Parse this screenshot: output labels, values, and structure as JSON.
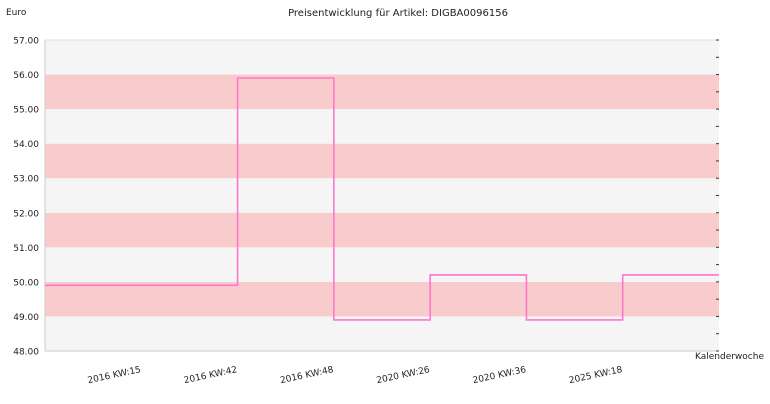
{
  "chart_data": {
    "type": "line",
    "step": true,
    "title": "Preisentwicklung für Artikel: DIGBA0096156",
    "ylabel": "Euro",
    "xlabel": "Kalenderwoche",
    "ylim": [
      48.0,
      57.0
    ],
    "yticks": [
      "48.00",
      "49.00",
      "50.00",
      "51.00",
      "52.00",
      "53.00",
      "54.00",
      "55.00",
      "56.00",
      "57.00"
    ],
    "categories": [
      "2016 KW:15",
      "2016 KW:42",
      "2016 KW:48",
      "2020 KW:26",
      "2020 KW:36",
      "2025 KW:18"
    ],
    "series": [
      {
        "values": [
          49.9,
          55.9,
          48.9,
          50.2,
          48.9,
          50.2
        ]
      }
    ],
    "grid": true,
    "band_colors": [
      "#f5f5f5",
      "#f8cccc"
    ],
    "line_color": "#ff77cc"
  }
}
